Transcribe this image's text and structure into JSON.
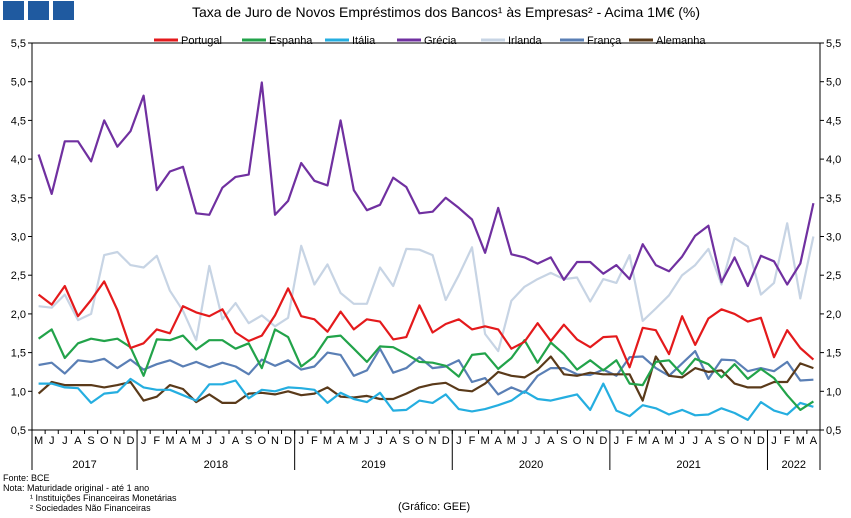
{
  "chart_data": {
    "type": "line",
    "title": "Taxa de Juro de Novos Empréstimos dos Bancos¹ às Empresas² - Acima 1M€ (%)",
    "xlabel": "",
    "ylabel": "",
    "ylim": [
      0.5,
      5.5
    ],
    "yticks": [
      "0,5",
      "1,0",
      "1,5",
      "2,0",
      "2,5",
      "3,0",
      "3,5",
      "4,0",
      "4,5",
      "5,0",
      "5,5"
    ],
    "grid": false,
    "legend_position": "top",
    "x": [
      "M",
      "J",
      "J",
      "A",
      "S",
      "O",
      "N",
      "D",
      "J",
      "F",
      "M",
      "A",
      "M",
      "J",
      "J",
      "A",
      "S",
      "O",
      "N",
      "D",
      "J",
      "F",
      "M",
      "A",
      "M",
      "J",
      "J",
      "A",
      "S",
      "O",
      "N",
      "D",
      "J",
      "F",
      "M",
      "A",
      "M",
      "J",
      "J",
      "A",
      "S",
      "O",
      "N",
      "D",
      "J",
      "F",
      "M",
      "A",
      "M",
      "J",
      "J",
      "A",
      "S",
      "O",
      "N",
      "D",
      "J",
      "F",
      "M",
      "A"
    ],
    "year_labels": [
      {
        "label": "2017",
        "start": 0,
        "end": 7
      },
      {
        "label": "2018",
        "start": 8,
        "end": 19
      },
      {
        "label": "2019",
        "start": 20,
        "end": 31
      },
      {
        "label": "2020",
        "start": 32,
        "end": 43
      },
      {
        "label": "2021",
        "start": 44,
        "end": 55
      },
      {
        "label": "2022",
        "start": 56,
        "end": 59
      }
    ],
    "series": [
      {
        "name": "Portugal",
        "color": "#e41a1c",
        "values": [
          2.25,
          2.12,
          2.36,
          1.97,
          2.18,
          2.42,
          2.05,
          1.56,
          1.62,
          1.8,
          1.75,
          2.1,
          2.02,
          1.97,
          2.06,
          1.76,
          1.65,
          1.72,
          1.98,
          2.33,
          1.97,
          1.93,
          1.77,
          2.03,
          1.8,
          1.93,
          1.9,
          1.67,
          1.7,
          2.11,
          1.76,
          1.87,
          1.93,
          1.8,
          1.84,
          1.8,
          1.55,
          1.64,
          1.88,
          1.65,
          1.86,
          1.67,
          1.57,
          1.7,
          1.71,
          1.31,
          1.82,
          1.79,
          1.48,
          1.97,
          1.6,
          1.94,
          2.06,
          2.0,
          1.9,
          1.95,
          1.44,
          1.79,
          1.56,
          1.41
        ]
      },
      {
        "name": "Espanha",
        "color": "#22a34a",
        "values": [
          1.68,
          1.8,
          1.43,
          1.62,
          1.68,
          1.65,
          1.68,
          1.57,
          1.2,
          1.67,
          1.66,
          1.72,
          1.54,
          1.66,
          1.66,
          1.55,
          1.62,
          1.3,
          1.8,
          1.7,
          1.32,
          1.45,
          1.7,
          1.72,
          1.55,
          1.38,
          1.58,
          1.57,
          1.48,
          1.38,
          1.37,
          1.33,
          1.19,
          1.47,
          1.49,
          1.29,
          1.43,
          1.66,
          1.37,
          1.63,
          1.48,
          1.28,
          1.4,
          1.27,
          1.4,
          1.1,
          1.08,
          1.38,
          1.4,
          1.22,
          1.42,
          1.35,
          1.18,
          1.35,
          1.16,
          1.29,
          1.17,
          0.95,
          0.76,
          0.87
        ]
      },
      {
        "name": "Itália",
        "color": "#25aee0",
        "values": [
          1.1,
          1.1,
          1.05,
          1.04,
          0.85,
          0.97,
          0.99,
          1.16,
          1.05,
          1.02,
          1.02,
          0.95,
          0.88,
          1.09,
          1.09,
          1.14,
          0.91,
          1.02,
          1.0,
          1.05,
          1.04,
          1.02,
          0.85,
          0.98,
          0.9,
          0.86,
          0.98,
          0.75,
          0.76,
          0.88,
          0.85,
          0.96,
          0.77,
          0.74,
          0.77,
          0.82,
          0.88,
          1.0,
          0.9,
          0.88,
          0.92,
          0.96,
          0.76,
          1.1,
          0.75,
          0.68,
          0.82,
          0.78,
          0.7,
          0.76,
          0.69,
          0.7,
          0.78,
          0.72,
          0.63,
          0.86,
          0.75,
          0.7,
          0.85,
          0.8
        ]
      },
      {
        "name": "Grécia",
        "color": "#7030a0",
        "values": [
          4.06,
          3.55,
          4.23,
          4.23,
          3.97,
          4.5,
          4.16,
          4.36,
          4.82,
          3.6,
          3.84,
          3.9,
          3.3,
          3.28,
          3.63,
          3.77,
          3.8,
          4.99,
          3.28,
          3.46,
          3.95,
          3.72,
          3.66,
          4.5,
          3.6,
          3.34,
          3.41,
          3.76,
          3.64,
          3.3,
          3.32,
          3.5,
          3.37,
          3.22,
          2.79,
          3.37,
          2.77,
          2.73,
          2.65,
          2.73,
          2.44,
          2.67,
          2.67,
          2.52,
          2.63,
          2.45,
          2.9,
          2.63,
          2.55,
          2.74,
          3.01,
          3.14,
          2.41,
          2.73,
          2.36,
          2.75,
          2.68,
          2.38,
          2.65,
          3.43
        ]
      },
      {
        "name": "Irlanda",
        "color": "#c7d4e4",
        "values": [
          2.1,
          2.08,
          2.25,
          1.92,
          2.0,
          2.76,
          2.8,
          2.63,
          2.6,
          2.75,
          2.3,
          2.04,
          1.66,
          2.62,
          1.93,
          2.14,
          1.88,
          1.98,
          1.84,
          1.95,
          2.88,
          2.38,
          2.64,
          2.27,
          2.13,
          2.13,
          2.6,
          2.36,
          2.84,
          2.83,
          2.76,
          2.18,
          2.5,
          2.86,
          1.74,
          1.52,
          2.17,
          2.35,
          2.45,
          2.53,
          2.45,
          2.47,
          2.16,
          2.45,
          2.4,
          2.76,
          1.91,
          2.07,
          2.24,
          2.5,
          2.63,
          2.84,
          2.38,
          2.98,
          2.87,
          2.25,
          2.4,
          3.17,
          2.2,
          3.0
        ]
      },
      {
        "name": "França",
        "color": "#5a7fb5",
        "values": [
          1.34,
          1.37,
          1.23,
          1.4,
          1.38,
          1.42,
          1.3,
          1.41,
          1.28,
          1.35,
          1.4,
          1.32,
          1.38,
          1.31,
          1.37,
          1.32,
          1.22,
          1.41,
          1.33,
          1.4,
          1.28,
          1.32,
          1.5,
          1.47,
          1.2,
          1.27,
          1.55,
          1.24,
          1.3,
          1.44,
          1.3,
          1.32,
          1.4,
          1.12,
          1.17,
          0.96,
          1.05,
          0.98,
          1.2,
          1.3,
          1.3,
          1.22,
          1.21,
          1.28,
          1.2,
          1.44,
          1.45,
          1.3,
          1.2,
          1.36,
          1.52,
          1.16,
          1.41,
          1.4,
          1.26,
          1.3,
          1.26,
          1.38,
          1.14,
          1.15
        ]
      },
      {
        "name": "Alemanha",
        "color": "#5a3a1a",
        "values": [
          0.97,
          1.12,
          1.08,
          1.08,
          1.08,
          1.05,
          1.08,
          1.12,
          0.88,
          0.93,
          1.08,
          1.03,
          0.86,
          0.96,
          0.85,
          0.85,
          0.97,
          0.98,
          0.96,
          1.0,
          0.95,
          0.97,
          1.05,
          0.93,
          0.92,
          0.94,
          0.9,
          0.9,
          0.97,
          1.05,
          1.09,
          1.11,
          1.02,
          1.0,
          1.1,
          1.25,
          1.2,
          1.18,
          1.28,
          1.45,
          1.22,
          1.2,
          1.24,
          1.22,
          1.22,
          1.22,
          0.88,
          1.45,
          1.2,
          1.18,
          1.3,
          1.25,
          1.27,
          1.1,
          1.05,
          1.05,
          1.12,
          1.12,
          1.36,
          1.3
        ]
      }
    ]
  },
  "footer": {
    "source": "Fonte: BCE",
    "note": "Nota: Maturidade original - até 1 ano",
    "note1": "¹ Instituições Financeiras Monetárias",
    "note2": "² Sociedades Não Financeiras",
    "credit": "(Gráfico: GEE)"
  },
  "brand": {
    "logo_color": "#1f5aa0"
  }
}
